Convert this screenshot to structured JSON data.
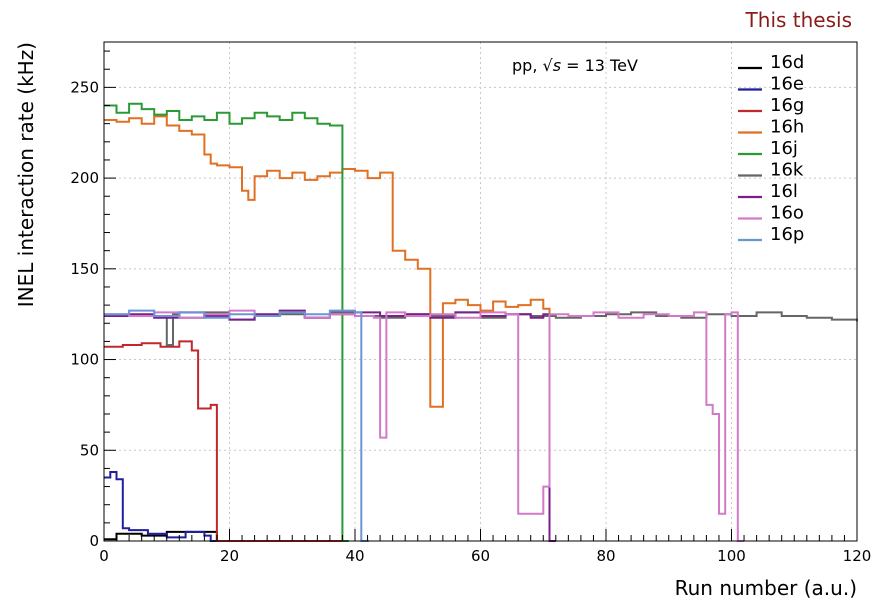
{
  "banner": {
    "text": "This thesis",
    "color": "#8b1a1a"
  },
  "annotation": {
    "prefix": "pp, ",
    "sqrt": "√",
    "s": "s",
    "suffix": " = 13 TeV"
  },
  "chart_data": {
    "type": "line",
    "title": "",
    "xlabel": "Run number (a.u.)",
    "ylabel": "INEL interaction rate (kHz)",
    "xlim": [
      0,
      120
    ],
    "ylim": [
      0,
      275
    ],
    "xticks": [
      0,
      20,
      40,
      60,
      80,
      100,
      120
    ],
    "yticks": [
      0,
      50,
      100,
      150,
      200,
      250
    ],
    "grid": true,
    "legend_position": "top-right",
    "step": true,
    "series": [
      {
        "name": "16d",
        "color": "#000000",
        "x": [
          0,
          2,
          6,
          10,
          14,
          18,
          18.2
        ],
        "y": [
          1,
          4,
          3,
          5,
          5,
          0,
          0
        ]
      },
      {
        "name": "16e",
        "color": "#1f1f9e",
        "x": [
          0,
          1,
          2,
          3,
          4,
          7,
          10,
          13,
          16,
          17,
          17.2
        ],
        "y": [
          35,
          38,
          34,
          7,
          6,
          4,
          2,
          5,
          3,
          0,
          0
        ]
      },
      {
        "name": "16g",
        "color": "#c0282b",
        "x": [
          0,
          3,
          6,
          9,
          12,
          14,
          15,
          17,
          18,
          38
        ],
        "y": [
          107,
          108,
          109,
          107,
          110,
          105,
          73,
          75,
          0,
          0
        ]
      },
      {
        "name": "16h",
        "color": "#e07022",
        "x": [
          0,
          2,
          4,
          6,
          8,
          10,
          12,
          14,
          16,
          17,
          18,
          20,
          22,
          23,
          24,
          26,
          28,
          30,
          32,
          34,
          36,
          38,
          40,
          42,
          44,
          46,
          48,
          50,
          52,
          54,
          56,
          58,
          60,
          62,
          64,
          66,
          68,
          70,
          71
        ],
        "y": [
          232,
          231,
          233,
          230,
          234,
          229,
          226,
          224,
          213,
          208,
          207,
          206,
          193,
          188,
          201,
          204,
          200,
          203,
          199,
          201,
          203,
          205,
          204,
          200,
          203,
          160,
          155,
          150,
          74,
          131,
          133,
          130,
          127,
          132,
          129,
          130,
          133,
          128,
          0
        ]
      },
      {
        "name": "16j",
        "color": "#2a9a35",
        "x": [
          0,
          2,
          4,
          6,
          8,
          10,
          12,
          14,
          16,
          18,
          20,
          22,
          24,
          26,
          28,
          30,
          32,
          34,
          36,
          38
        ],
        "y": [
          240,
          236,
          241,
          238,
          235,
          237,
          232,
          234,
          232,
          236,
          230,
          233,
          236,
          234,
          232,
          236,
          233,
          230,
          229,
          0
        ]
      },
      {
        "name": "16k",
        "color": "#666666",
        "x": [
          0,
          10,
          11,
          12,
          16,
          20,
          24,
          28,
          32,
          36,
          40,
          44,
          48,
          52,
          56,
          60,
          64,
          68,
          72,
          76,
          80,
          84,
          88,
          92,
          96,
          100,
          104,
          108,
          112,
          116,
          120
        ],
        "y": [
          124,
          108,
          125,
          123,
          126,
          122,
          124,
          125,
          123,
          126,
          124,
          123,
          125,
          124,
          126,
          123,
          125,
          124,
          123,
          124,
          125,
          126,
          124,
          123,
          125,
          124,
          126,
          124,
          123,
          122,
          121
        ]
      },
      {
        "name": "16l",
        "color": "#7a1e8a",
        "x": [
          0,
          4,
          8,
          12,
          16,
          20,
          24,
          28,
          32,
          36,
          40,
          44,
          48,
          52,
          56,
          60,
          64,
          68,
          70,
          71
        ],
        "y": [
          124,
          125,
          123,
          126,
          124,
          122,
          125,
          127,
          123,
          125,
          126,
          124,
          125,
          123,
          126,
          124,
          125,
          123,
          125,
          0
        ]
      },
      {
        "name": "16o",
        "color": "#d27ac8",
        "x": [
          0,
          4,
          8,
          12,
          16,
          20,
          24,
          28,
          32,
          36,
          40,
          43,
          44,
          45,
          48,
          52,
          56,
          60,
          64,
          66,
          67,
          70,
          71,
          74,
          78,
          82,
          86,
          90,
          94,
          96,
          97,
          98,
          99,
          100,
          101
        ],
        "y": [
          125,
          124,
          126,
          123,
          125,
          127,
          124,
          126,
          123,
          125,
          124,
          123,
          57,
          126,
          124,
          125,
          123,
          126,
          125,
          15,
          15,
          30,
          125,
          124,
          126,
          123,
          125,
          124,
          126,
          75,
          70,
          15,
          125,
          126,
          0
        ]
      },
      {
        "name": "16p",
        "color": "#6b94d6",
        "x": [
          0,
          4,
          8,
          12,
          16,
          20,
          24,
          28,
          32,
          36,
          40,
          41,
          41.2
        ],
        "y": [
          125,
          127,
          124,
          126,
          123,
          125,
          124,
          126,
          125,
          127,
          126,
          0,
          0
        ]
      }
    ]
  }
}
